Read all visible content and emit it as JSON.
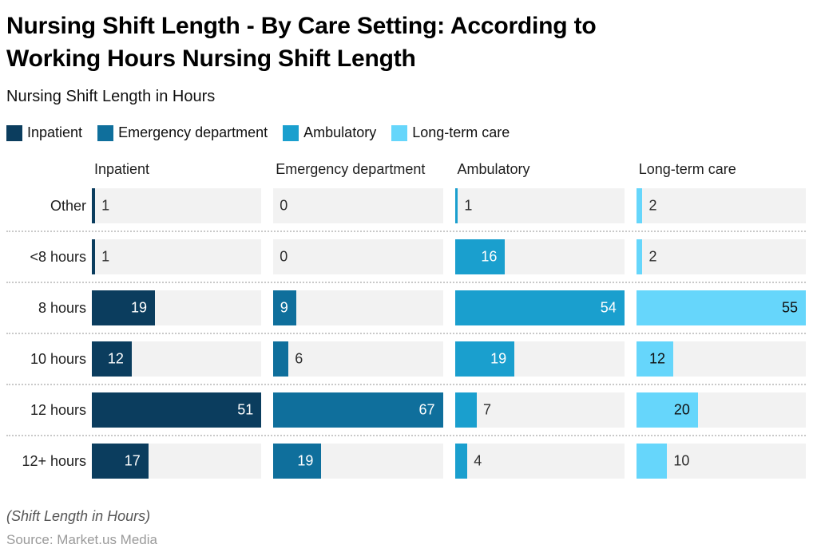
{
  "header": {
    "title_line1": "Nursing Shift Length - By Care Setting: According to",
    "title_line2": "Working Hours Nursing Shift Length",
    "subtitle": "Nursing Shift Length in Hours"
  },
  "legend": {
    "items": [
      {
        "label": "Inpatient",
        "color": "#0b3d5e"
      },
      {
        "label": "Emergency department",
        "color": "#0f6f9c"
      },
      {
        "label": "Ambulatory",
        "color": "#1a9fce"
      },
      {
        "label": "Long-term care",
        "color": "#66d6fb"
      }
    ]
  },
  "chart_data": {
    "type": "bar",
    "orientation": "horizontal",
    "categories": [
      "Other",
      "<8 hours",
      "8 hours",
      "10 hours",
      "12 hours",
      "12+ hours"
    ],
    "series": [
      {
        "name": "Inpatient",
        "color": "#0b3d5e",
        "inside_label_color": "#ffffff",
        "values": [
          1,
          1,
          19,
          12,
          51,
          17
        ],
        "column_max": 51
      },
      {
        "name": "Emergency department",
        "color": "#0f6f9c",
        "inside_label_color": "#ffffff",
        "values": [
          0,
          0,
          9,
          6,
          67,
          19
        ],
        "column_max": 67
      },
      {
        "name": "Ambulatory",
        "color": "#1a9fce",
        "inside_label_color": "#ffffff",
        "values": [
          1,
          16,
          54,
          19,
          7,
          4
        ],
        "column_max": 54
      },
      {
        "name": "Long-term care",
        "color": "#66d6fb",
        "inside_label_color": "#111111",
        "values": [
          2,
          2,
          55,
          12,
          20,
          10
        ],
        "column_max": 55
      }
    ],
    "track_color": "#f2f2f2",
    "grid": "dotted row separators",
    "legend_position": "top",
    "value_labels_shown": true
  },
  "footer": {
    "note": "(Shift Length in Hours)",
    "source": "Source: Market.us Media"
  }
}
